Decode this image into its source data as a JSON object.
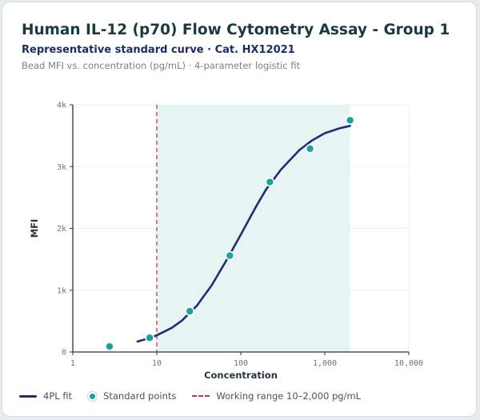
{
  "header": {
    "title": "Human IL-12 (p70) Flow Cytometry Assay - Group 1",
    "subtitle": "Representative standard curve · Cat. HX12021",
    "note": "Bead MFI vs. concentration (pg/mL) · 4-parameter logistic fit"
  },
  "legend": {
    "fit": "4PL fit",
    "points": "Standard points",
    "range": "Working range 10–2,000 pg/mL"
  },
  "colors": {
    "fit": "#232a7a",
    "points": "#1aa39b",
    "range_line": "#c9353f",
    "range_fill": "#e6f5f4"
  },
  "chart_data": {
    "type": "scatter",
    "xlabel": "Concentration",
    "ylabel": "MFI",
    "xscale": "log",
    "xlim": [
      1,
      10000
    ],
    "ylim": [
      0,
      4000
    ],
    "xticks": [
      1,
      10,
      100,
      1000,
      10000
    ],
    "xtick_labels": [
      "1",
      "10",
      "100",
      "1,000",
      "10,000"
    ],
    "yticks": [
      0,
      1000,
      2000,
      3000,
      4000
    ],
    "ytick_labels": [
      "0",
      "1k",
      "2k",
      "3k",
      "4k"
    ],
    "grid": true,
    "working_range": [
      10,
      2000
    ],
    "series": [
      {
        "name": "Standard points",
        "points": [
          {
            "x": 2.74,
            "y": 90
          },
          {
            "x": 8.23,
            "y": 230
          },
          {
            "x": 24.7,
            "y": 660
          },
          {
            "x": 74.1,
            "y": 1560
          },
          {
            "x": 222,
            "y": 2750
          },
          {
            "x": 667,
            "y": 3290
          },
          {
            "x": 2000,
            "y": 3750
          }
        ]
      },
      {
        "name": "4PL fit",
        "curve": [
          {
            "x": 5.9,
            "y": 170
          },
          {
            "x": 8,
            "y": 220
          },
          {
            "x": 10,
            "y": 270
          },
          {
            "x": 15,
            "y": 390
          },
          {
            "x": 20,
            "y": 510
          },
          {
            "x": 30,
            "y": 750
          },
          {
            "x": 45,
            "y": 1080
          },
          {
            "x": 70,
            "y": 1520
          },
          {
            "x": 100,
            "y": 1900
          },
          {
            "x": 150,
            "y": 2340
          },
          {
            "x": 200,
            "y": 2630
          },
          {
            "x": 300,
            "y": 2950
          },
          {
            "x": 500,
            "y": 3270
          },
          {
            "x": 700,
            "y": 3420
          },
          {
            "x": 1000,
            "y": 3540
          },
          {
            "x": 1500,
            "y": 3620
          },
          {
            "x": 2000,
            "y": 3660
          }
        ]
      }
    ]
  }
}
